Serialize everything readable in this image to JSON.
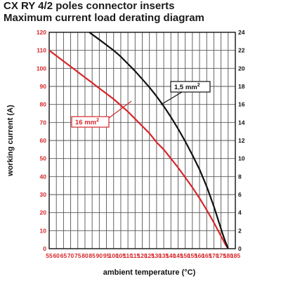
{
  "title": "CX RY 4/2 poles connector inserts",
  "subtitle": "Maximum current load derating diagram",
  "chart_data": {
    "type": "line",
    "xlabel": "ambient temperature (°C)",
    "ylabel": "working current (A)",
    "xlim": [
      55,
      185
    ],
    "ylim_left": [
      0,
      120
    ],
    "ylim_right": [
      0,
      24
    ],
    "x_ticks": [
      55,
      60,
      65,
      70,
      75,
      80,
      85,
      90,
      95,
      100,
      105,
      110,
      115,
      120,
      125,
      130,
      135,
      140,
      145,
      150,
      155,
      160,
      165,
      170,
      175,
      180,
      185
    ],
    "y_ticks_left": [
      0,
      10,
      20,
      30,
      40,
      50,
      60,
      70,
      80,
      90,
      100,
      110,
      120
    ],
    "y_ticks_right": [
      0,
      2,
      4,
      6,
      8,
      10,
      12,
      14,
      16,
      18,
      20,
      22,
      24
    ],
    "grid": true,
    "colors": {
      "left_axis": "#d7262a",
      "right_axis": "#111111",
      "grid": "#555555"
    },
    "series": [
      {
        "name": "16 mm²",
        "color": "#d7262a",
        "axis": "left",
        "x": [
          55,
          60,
          65,
          70,
          75,
          80,
          85,
          90,
          95,
          100,
          105,
          110,
          115,
          120,
          125,
          130,
          135,
          140,
          145,
          150,
          155,
          160,
          165,
          170,
          172,
          174,
          176,
          178,
          180
        ],
        "y": [
          110,
          107,
          104,
          101,
          98,
          95,
          92,
          89,
          86,
          83,
          79.5,
          76,
          72,
          68,
          64,
          59,
          55,
          50,
          45,
          39.5,
          34,
          28,
          21.5,
          14.5,
          11.5,
          8.5,
          5.5,
          2.5,
          0
        ]
      },
      {
        "name": "1,5 mm²",
        "color": "#111111",
        "axis": "right",
        "x": [
          83,
          90,
          95,
          100,
          105,
          110,
          115,
          120,
          125,
          130,
          135,
          140,
          145,
          150,
          155,
          160,
          165,
          170,
          172,
          174,
          176,
          178,
          180
        ],
        "y": [
          24,
          23.2,
          22.6,
          22,
          21.3,
          20.5,
          19.7,
          18.8,
          17.9,
          16.9,
          15.8,
          14.6,
          13.3,
          11.9,
          10.4,
          8.8,
          6.9,
          4.7,
          3.7,
          2.7,
          1.7,
          0.8,
          0
        ]
      }
    ],
    "annotations": [
      {
        "label": "1,5 mm",
        "sup": "2",
        "series": "1,5 mm²"
      },
      {
        "label": "16 mm",
        "sup": "2",
        "series": "16 mm²"
      }
    ]
  }
}
